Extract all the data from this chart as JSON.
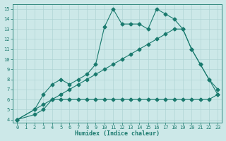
{
  "xlabel": "Humidex (Indice chaleur)",
  "bg_color": "#cce8e8",
  "line_color": "#1a7a6e",
  "grid_color": "#b0d4d4",
  "xlim": [
    -0.5,
    23.5
  ],
  "ylim": [
    3.7,
    15.5
  ],
  "xticks": [
    0,
    1,
    2,
    3,
    4,
    5,
    6,
    7,
    8,
    9,
    10,
    11,
    12,
    13,
    14,
    15,
    16,
    17,
    18,
    19,
    20,
    21,
    22,
    23
  ],
  "yticks": [
    4,
    5,
    6,
    7,
    8,
    9,
    10,
    11,
    12,
    13,
    14,
    15
  ],
  "line1_x": [
    0,
    2,
    3,
    4,
    5,
    6,
    7,
    8,
    9,
    10,
    11,
    12,
    13,
    14,
    15,
    16,
    17,
    18,
    19,
    20,
    21,
    22,
    23
  ],
  "line1_y": [
    4,
    4.5,
    5,
    6,
    6,
    6,
    6,
    6,
    6,
    6,
    6,
    6,
    6,
    6,
    6,
    6,
    6,
    6,
    6,
    6,
    6,
    6,
    6.5
  ],
  "line2_x": [
    0,
    2,
    3,
    4,
    5,
    6,
    7,
    8,
    9,
    10,
    11,
    12,
    13,
    14,
    15,
    16,
    17,
    18,
    19,
    20,
    21,
    22,
    23
  ],
  "line2_y": [
    4,
    5,
    5.5,
    6,
    6.5,
    7,
    7.5,
    8,
    8.5,
    9,
    9.5,
    10,
    10.5,
    11,
    11.5,
    12,
    12.5,
    13,
    13,
    11,
    9.5,
    8,
    6.5
  ],
  "line3_x": [
    0,
    2,
    3,
    4,
    5,
    6,
    7,
    8,
    9,
    10,
    11,
    12,
    13,
    14,
    15,
    16,
    17,
    18,
    19,
    20,
    21,
    22,
    23
  ],
  "line3_y": [
    4,
    5,
    6.5,
    7.5,
    8,
    7.5,
    8,
    8.5,
    9.5,
    13.2,
    15,
    13.5,
    13.5,
    13.5,
    13,
    15,
    14.5,
    14,
    13,
    11,
    9.5,
    8,
    7
  ]
}
